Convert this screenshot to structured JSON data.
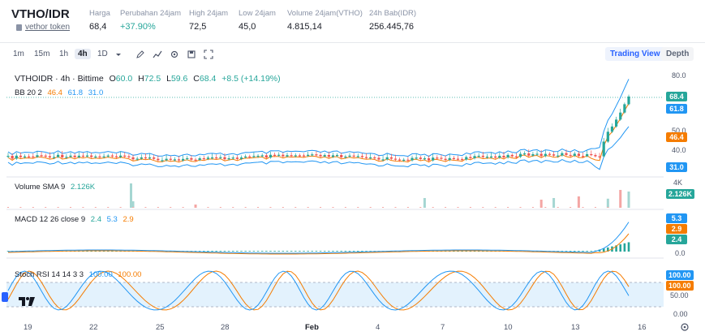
{
  "header": {
    "pair": "VTHO/IDR",
    "token_link": "vethor token",
    "stats": [
      {
        "label": "Harga",
        "value": "68,4",
        "up": false
      },
      {
        "label": "Perubahan 24jam",
        "value": "+37.90%",
        "up": true
      },
      {
        "label": "High 24jam",
        "value": "72,5",
        "up": false
      },
      {
        "label": "Low 24jam",
        "value": "45,0",
        "up": false
      },
      {
        "label": "Volume 24jam(VTHO)",
        "value": "4.815,14",
        "up": false
      },
      {
        "label": "24h Bab(IDR)",
        "value": "256.445,76",
        "up": false
      }
    ]
  },
  "toolbar": {
    "timeframes": [
      "1m",
      "15m",
      "1h",
      "4h",
      "1D"
    ],
    "active": "4h",
    "trading_view": "Trading View",
    "depth": "Depth"
  },
  "legend": {
    "main_title": "VTHOIDR · 4h · Bittime",
    "o_lbl": "O",
    "o_val": "60.0",
    "h_lbl": "H",
    "h_val": "72.5",
    "l_lbl": "L",
    "l_val": "59.6",
    "c_lbl": "C",
    "c_val": "68.4",
    "chg": "+8.5 (+14.19%)",
    "bb_lbl": "BB 20 2",
    "bb1": "46.4",
    "bb2": "61.8",
    "bb3": "31.0",
    "vol_lbl": "Volume SMA 9",
    "vol_val": "2.126K",
    "macd_lbl": "MACD 12 26 close 9",
    "m1": "2.4",
    "m2": "5.3",
    "m3": "2.9",
    "stoch_lbl": "Stoch RSI 14 14 3 3",
    "s1": "100.00",
    "s2": "100.00"
  },
  "axis": {
    "price_ticks": [
      "80.0",
      "50.0",
      "40.0"
    ],
    "price_badges": {
      "close": "68.4",
      "bb_up": "61.8",
      "bb_mid": "46.4",
      "bb_low": "31.0"
    },
    "vol_tick": "4K",
    "vol_badge": "2.126K",
    "macd_badges": {
      "m": "5.3",
      "s": "2.9",
      "h": "2.4"
    },
    "macd_tick": "0.0",
    "stoch_badges": {
      "k": "100.00",
      "d": "100.00"
    },
    "stoch_ticks": [
      "50.00",
      "0.00"
    ],
    "x_labels": [
      "19",
      "22",
      "25",
      "28",
      "Feb",
      "4",
      "7",
      "10",
      "13",
      "16"
    ]
  },
  "colors": {
    "up": "#26a69a",
    "down": "#ef5350",
    "bb_mid": "#f57c00",
    "bb_band": "#2196f3"
  },
  "icons": [
    "pencil-icon",
    "indicators-icon",
    "settings-icon",
    "save-icon",
    "fullscreen-icon"
  ]
}
